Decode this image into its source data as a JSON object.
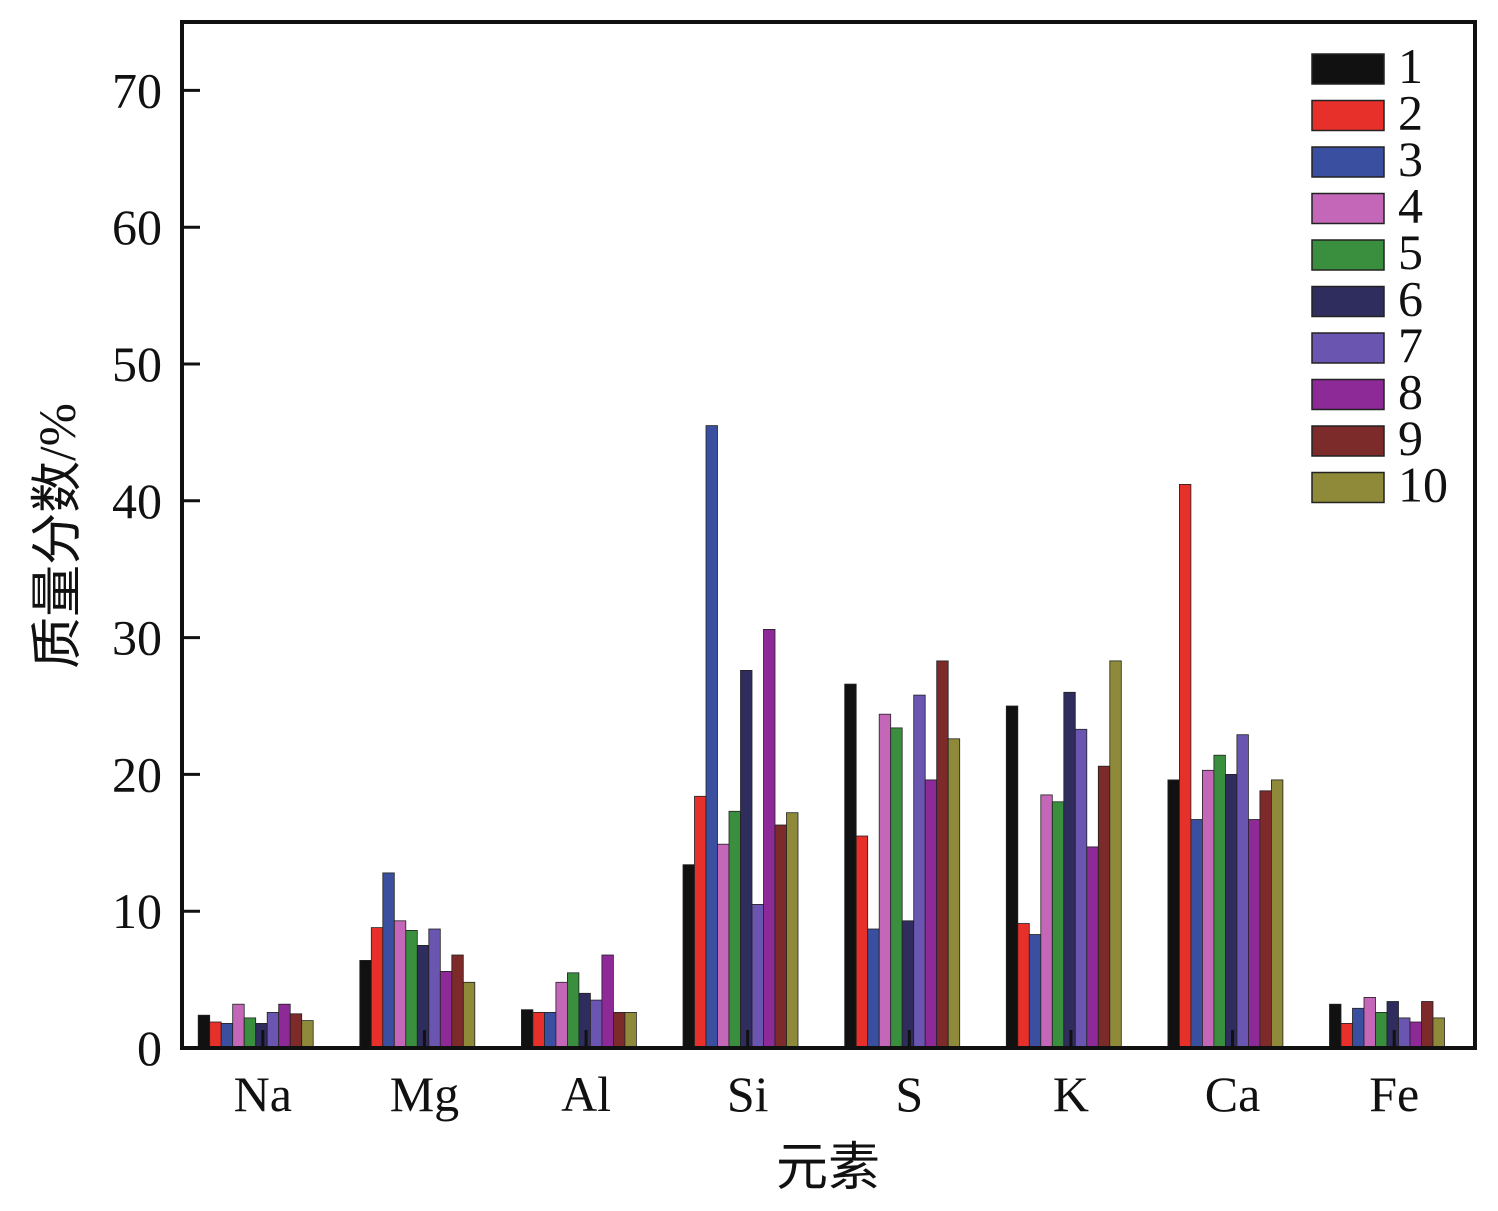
{
  "chart_data": {
    "type": "bar",
    "title": "",
    "xlabel": "元素",
    "ylabel": "质量分数/%",
    "ylim": [
      0,
      75
    ],
    "yticks": [
      0,
      10,
      20,
      30,
      40,
      50,
      60,
      70
    ],
    "grid": false,
    "legend_position": "top-right",
    "categories": [
      "Na",
      "Mg",
      "Al",
      "Si",
      "S",
      "K",
      "Ca",
      "Fe"
    ],
    "series": [
      {
        "name": "1",
        "color": "#111111",
        "values": [
          2.4,
          6.4,
          2.8,
          13.4,
          26.6,
          25.0,
          19.6,
          3.2
        ]
      },
      {
        "name": "2",
        "color": "#e8302a",
        "values": [
          1.9,
          8.8,
          2.6,
          18.4,
          15.5,
          9.1,
          41.2,
          1.8
        ]
      },
      {
        "name": "3",
        "color": "#3a4f9f",
        "values": [
          1.8,
          12.8,
          2.6,
          45.5,
          8.7,
          8.3,
          16.7,
          2.9
        ]
      },
      {
        "name": "4",
        "color": "#c467b8",
        "values": [
          3.2,
          9.3,
          4.8,
          14.9,
          24.4,
          18.5,
          20.3,
          3.7
        ]
      },
      {
        "name": "5",
        "color": "#3a8f3f",
        "values": [
          2.2,
          8.6,
          5.5,
          17.3,
          23.4,
          18.0,
          21.4,
          2.6
        ]
      },
      {
        "name": "6",
        "color": "#2f2c5e",
        "values": [
          1.8,
          7.5,
          4.0,
          27.6,
          9.3,
          26.0,
          20.0,
          3.4
        ]
      },
      {
        "name": "7",
        "color": "#6a55b0",
        "values": [
          2.6,
          8.7,
          3.5,
          10.5,
          25.8,
          23.3,
          22.9,
          2.2
        ]
      },
      {
        "name": "8",
        "color": "#8d2a98",
        "values": [
          3.2,
          5.6,
          6.8,
          30.6,
          19.6,
          14.7,
          16.7,
          1.9
        ]
      },
      {
        "name": "9",
        "color": "#7d2a2a",
        "values": [
          2.5,
          6.8,
          2.6,
          16.3,
          28.3,
          20.6,
          18.8,
          3.4
        ]
      },
      {
        "name": "10",
        "color": "#8f8a3a",
        "values": [
          2.0,
          4.8,
          2.6,
          17.2,
          22.6,
          28.3,
          19.6,
          2.2
        ]
      }
    ]
  }
}
